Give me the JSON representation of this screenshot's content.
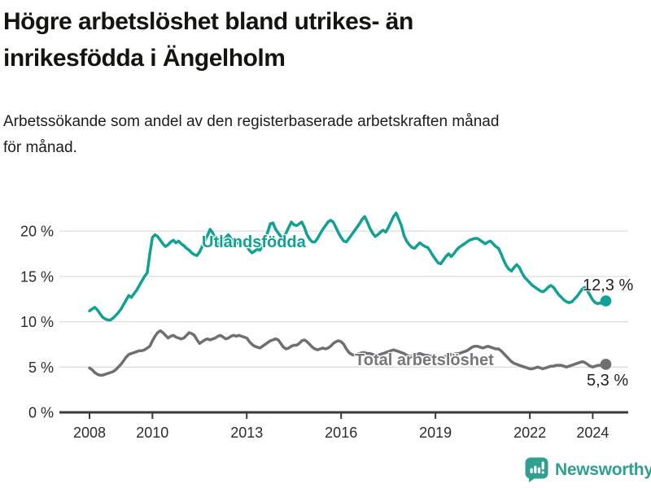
{
  "header": {
    "title": "Högre arbetslöshet bland utrikes- än inrikesfödda i Ängelholm",
    "title_lines": [
      "Högre arbetslöshet bland utrikes- än",
      "inrikesfödda i Ängelholm"
    ],
    "subtitle": "Arbetssökande som andel av den registerbaserade arbetskraften månad för månad.",
    "subtitle_lines": [
      "Arbetssökande som andel av den registerbaserade arbetskraften månad",
      "för månad."
    ]
  },
  "chart_data": {
    "type": "line",
    "title": "Högre arbetslöshet bland utrikes- än inrikesfödda i Ängelholm",
    "subtitle": "Arbetssökande som andel av den registerbaserade arbetskraften månad för månad.",
    "xlabel": "",
    "ylabel": "",
    "unit": "%",
    "grid": "horizontal",
    "legend_position": "inline-labels",
    "x_start": "2008-01",
    "x_end": "2024-06",
    "x_resolution": "monthly",
    "xlim_years": [
      2007.0,
      2025.1
    ],
    "ylim": [
      0,
      22.6
    ],
    "x_ticks": [
      {
        "year": 2008,
        "label": "2008"
      },
      {
        "year": 2010,
        "label": "2010"
      },
      {
        "year": 2013,
        "label": "2013"
      },
      {
        "year": 2016,
        "label": "2016"
      },
      {
        "year": 2019,
        "label": "2019"
      },
      {
        "year": 2022,
        "label": "2022"
      },
      {
        "year": 2024,
        "label": "2024"
      }
    ],
    "y_ticks": [
      {
        "value": 0,
        "label": "0 %"
      },
      {
        "value": 5,
        "label": "5 %"
      },
      {
        "value": 10,
        "label": "10 %"
      },
      {
        "value": 15,
        "label": "15 %"
      },
      {
        "value": 20,
        "label": "20 %"
      }
    ],
    "series": [
      {
        "name": "Utlandsfödda",
        "color": "#0fa294",
        "end_label": "12,3 %",
        "end_value": 12.3,
        "values": [
          11.2,
          11.4,
          11.6,
          11.3,
          10.9,
          10.5,
          10.3,
          10.2,
          10.2,
          10.4,
          10.7,
          11.0,
          11.4,
          11.9,
          12.4,
          12.9,
          12.7,
          13.1,
          13.5,
          14.0,
          14.5,
          15.0,
          15.4,
          17.5,
          19.3,
          19.6,
          19.4,
          19.0,
          18.6,
          18.3,
          18.5,
          18.8,
          19.0,
          18.7,
          18.9,
          18.6,
          18.4,
          18.1,
          17.9,
          17.6,
          17.4,
          17.3,
          17.7,
          18.3,
          18.9,
          19.5,
          20.2,
          19.8,
          19.2,
          18.6,
          18.4,
          18.9,
          19.3,
          19.6,
          19.2,
          18.8,
          18.6,
          18.9,
          18.7,
          18.5,
          18.3,
          17.9,
          17.6,
          17.8,
          18.0,
          17.9,
          18.4,
          19.1,
          19.9,
          20.8,
          20.9,
          20.2,
          19.8,
          19.4,
          19.3,
          19.8,
          20.4,
          21.0,
          20.7,
          20.6,
          20.8,
          21.0,
          20.4,
          19.6,
          19.1,
          18.8,
          18.8,
          19.2,
          19.7,
          20.2,
          20.6,
          21.0,
          21.2,
          21.0,
          20.4,
          19.8,
          19.3,
          18.9,
          18.8,
          19.2,
          19.6,
          20.0,
          20.4,
          20.8,
          21.3,
          21.6,
          21.0,
          20.3,
          19.8,
          19.4,
          19.6,
          19.9,
          20.1,
          19.9,
          20.4,
          21.0,
          21.6,
          22.0,
          21.3,
          20.6,
          19.5,
          18.9,
          18.5,
          18.2,
          18.1,
          18.4,
          18.7,
          18.5,
          18.3,
          18.2,
          17.8,
          17.3,
          16.9,
          16.5,
          16.4,
          16.8,
          17.2,
          17.5,
          17.2,
          17.5,
          17.9,
          18.2,
          18.4,
          18.6,
          18.8,
          19.0,
          19.1,
          19.2,
          19.2,
          19.0,
          18.8,
          18.6,
          18.8,
          18.9,
          18.6,
          18.3,
          18.1,
          17.5,
          16.8,
          16.2,
          15.8,
          15.6,
          16.0,
          16.3,
          16.0,
          15.4,
          14.9,
          14.6,
          14.3,
          14.0,
          13.8,
          13.6,
          13.4,
          13.3,
          13.5,
          13.8,
          14.0,
          13.8,
          13.4,
          13.0,
          12.7,
          12.4,
          12.2,
          12.1,
          12.2,
          12.5,
          12.8,
          13.2,
          13.6,
          13.8,
          13.4,
          12.9,
          12.4,
          12.1,
          12.0,
          12.1,
          12.0,
          12.3
        ]
      },
      {
        "name": "Total arbetslöshet",
        "color": "#6f6f73",
        "end_label": "5,3 %",
        "end_value": 5.3,
        "values": [
          4.9,
          4.7,
          4.4,
          4.2,
          4.1,
          4.1,
          4.2,
          4.3,
          4.4,
          4.5,
          4.7,
          5.0,
          5.3,
          5.7,
          6.1,
          6.4,
          6.5,
          6.6,
          6.7,
          6.8,
          6.8,
          6.9,
          7.1,
          7.3,
          7.9,
          8.4,
          8.8,
          9.0,
          8.8,
          8.5,
          8.2,
          8.4,
          8.5,
          8.3,
          8.2,
          8.1,
          8.2,
          8.5,
          8.8,
          8.7,
          8.5,
          8.0,
          7.6,
          7.8,
          8.0,
          8.1,
          8.0,
          8.1,
          8.2,
          8.4,
          8.5,
          8.3,
          8.1,
          8.2,
          8.4,
          8.5,
          8.4,
          8.5,
          8.4,
          8.3,
          8.2,
          7.8,
          7.5,
          7.3,
          7.2,
          7.1,
          7.3,
          7.5,
          7.7,
          7.9,
          8.0,
          8.1,
          8.0,
          7.6,
          7.2,
          7.0,
          7.1,
          7.3,
          7.4,
          7.4,
          7.6,
          7.9,
          8.0,
          7.8,
          7.5,
          7.2,
          7.0,
          6.9,
          7.0,
          7.1,
          7.0,
          7.1,
          7.3,
          7.6,
          7.8,
          7.9,
          7.8,
          7.5,
          7.0,
          6.6,
          6.4,
          6.3,
          6.4,
          6.5,
          6.6,
          6.6,
          6.5,
          6.5,
          6.4,
          6.3,
          6.3,
          6.4,
          6.5,
          6.6,
          6.7,
          6.8,
          6.9,
          6.8,
          6.7,
          6.6,
          6.5,
          6.3,
          6.2,
          6.2,
          6.3,
          6.4,
          6.5,
          6.4,
          6.3,
          6.3,
          6.2,
          6.2,
          6.1,
          6.0,
          6.0,
          6.1,
          6.2,
          6.3,
          6.4,
          6.4,
          6.5,
          6.5,
          6.6,
          6.7,
          6.8,
          7.0,
          7.2,
          7.3,
          7.3,
          7.2,
          7.1,
          7.2,
          7.3,
          7.2,
          7.1,
          7.0,
          7.0,
          6.8,
          6.5,
          6.2,
          5.9,
          5.6,
          5.4,
          5.3,
          5.2,
          5.1,
          5.0,
          4.9,
          4.8,
          4.8,
          4.9,
          5.0,
          4.9,
          4.8,
          4.9,
          5.0,
          5.1,
          5.1,
          5.2,
          5.2,
          5.2,
          5.1,
          5.0,
          5.1,
          5.2,
          5.3,
          5.4,
          5.5,
          5.6,
          5.5,
          5.3,
          5.1,
          5.0,
          5.1,
          5.2,
          5.2,
          5.3,
          5.3
        ]
      }
    ]
  },
  "style": {
    "gridline_color": "#dedede",
    "axis_color": "#3a3a3a",
    "tick_text_color": "#2b2b2b"
  },
  "footer": {
    "brand": "Newsworthy",
    "brand_color": "#2f9f90",
    "icon": "bar-chart-speech-bubble-icon"
  }
}
